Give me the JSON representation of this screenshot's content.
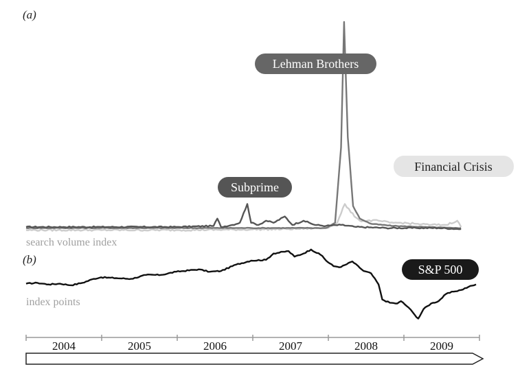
{
  "panels": {
    "a_label": "(a)",
    "b_label": "(b)"
  },
  "chart_data": [
    {
      "type": "line",
      "panel": "(a)",
      "ylabel": "search volume index",
      "x_range": [
        2004.0,
        2010.0
      ],
      "y_range": [
        0,
        100
      ],
      "series": [
        {
          "name": "Subprime",
          "color": "#555555",
          "points": [
            [
              2004.0,
              2
            ],
            [
              2004.5,
              2
            ],
            [
              2005.0,
              2
            ],
            [
              2005.5,
              2
            ],
            [
              2006.0,
              2
            ],
            [
              2006.5,
              2.5
            ],
            [
              2006.55,
              6
            ],
            [
              2006.6,
              2
            ],
            [
              2006.75,
              3
            ],
            [
              2006.85,
              4
            ],
            [
              2006.95,
              13
            ],
            [
              2007.0,
              4
            ],
            [
              2007.1,
              3
            ],
            [
              2007.2,
              5
            ],
            [
              2007.3,
              4
            ],
            [
              2007.45,
              7
            ],
            [
              2007.55,
              3
            ],
            [
              2007.7,
              5
            ],
            [
              2007.85,
              3
            ],
            [
              2008.0,
              2.5
            ],
            [
              2008.2,
              3
            ],
            [
              2008.4,
              2
            ],
            [
              2008.8,
              1.5
            ],
            [
              2009.2,
              1.5
            ],
            [
              2009.5,
              1.5
            ],
            [
              2009.8,
              1
            ]
          ]
        },
        {
          "name": "Lehman Brothers",
          "color": "#777777",
          "points": [
            [
              2004.0,
              1.5
            ],
            [
              2005.0,
              1.5
            ],
            [
              2006.0,
              1.5
            ],
            [
              2006.8,
              1.5
            ],
            [
              2007.0,
              1.5
            ],
            [
              2007.3,
              1.5
            ],
            [
              2007.6,
              1.5
            ],
            [
              2007.9,
              1.5
            ],
            [
              2008.0,
              1.5
            ],
            [
              2008.12,
              4
            ],
            [
              2008.2,
              40
            ],
            [
              2008.24,
              100
            ],
            [
              2008.29,
              45
            ],
            [
              2008.36,
              12
            ],
            [
              2008.45,
              6
            ],
            [
              2008.6,
              3.5
            ],
            [
              2008.9,
              2.5
            ],
            [
              2009.3,
              2
            ],
            [
              2009.7,
              1.5
            ],
            [
              2009.8,
              1.5
            ]
          ]
        },
        {
          "name": "Financial Crisis",
          "color": "#cccccc",
          "points": [
            [
              2004.0,
              0.5
            ],
            [
              2005.0,
              0.5
            ],
            [
              2006.0,
              0.5
            ],
            [
              2007.0,
              0.8
            ],
            [
              2007.5,
              1
            ],
            [
              2008.0,
              1.5
            ],
            [
              2008.15,
              4
            ],
            [
              2008.25,
              13
            ],
            [
              2008.33,
              9
            ],
            [
              2008.45,
              5
            ],
            [
              2008.7,
              5
            ],
            [
              2008.85,
              4
            ],
            [
              2009.0,
              4
            ],
            [
              2009.2,
              3.5
            ],
            [
              2009.4,
              3
            ],
            [
              2009.6,
              3
            ],
            [
              2009.75,
              5
            ],
            [
              2009.8,
              2
            ]
          ]
        }
      ],
      "annotations": [
        {
          "text": "Lehman Brothers",
          "style": "dark-grey",
          "x": 2008.0,
          "y": 72
        },
        {
          "text": "Subprime",
          "style": "dark-grey",
          "x": 2006.5,
          "y": 19
        },
        {
          "text": "Financial Crisis",
          "style": "light-grey",
          "x": 2009.0,
          "y": 26
        }
      ]
    },
    {
      "type": "line",
      "panel": "(b)",
      "ylabel": "index points",
      "x_range": [
        2004.0,
        2010.0
      ],
      "y_range": [
        650,
        1600
      ],
      "series": [
        {
          "name": "S&P 500",
          "color": "#111111",
          "points": [
            [
              2004.0,
              1120
            ],
            [
              2004.15,
              1130
            ],
            [
              2004.3,
              1110
            ],
            [
              2004.45,
              1120
            ],
            [
              2004.6,
              1100
            ],
            [
              2004.75,
              1130
            ],
            [
              2004.9,
              1180
            ],
            [
              2005.0,
              1200
            ],
            [
              2005.2,
              1190
            ],
            [
              2005.4,
              1180
            ],
            [
              2005.6,
              1230
            ],
            [
              2005.8,
              1230
            ],
            [
              2006.0,
              1270
            ],
            [
              2006.3,
              1300
            ],
            [
              2006.45,
              1270
            ],
            [
              2006.6,
              1280
            ],
            [
              2006.8,
              1360
            ],
            [
              2007.0,
              1410
            ],
            [
              2007.2,
              1420
            ],
            [
              2007.3,
              1500
            ],
            [
              2007.5,
              1530
            ],
            [
              2007.58,
              1460
            ],
            [
              2007.7,
              1500
            ],
            [
              2007.8,
              1550
            ],
            [
              2007.95,
              1470
            ],
            [
              2008.0,
              1410
            ],
            [
              2008.1,
              1340
            ],
            [
              2008.2,
              1330
            ],
            [
              2008.35,
              1400
            ],
            [
              2008.5,
              1280
            ],
            [
              2008.6,
              1250
            ],
            [
              2008.7,
              1110
            ],
            [
              2008.75,
              920
            ],
            [
              2008.85,
              880
            ],
            [
              2008.95,
              870
            ],
            [
              2009.0,
              900
            ],
            [
              2009.1,
              820
            ],
            [
              2009.18,
              730
            ],
            [
              2009.23,
              680
            ],
            [
              2009.3,
              800
            ],
            [
              2009.4,
              870
            ],
            [
              2009.5,
              900
            ],
            [
              2009.6,
              990
            ],
            [
              2009.7,
              1020
            ],
            [
              2009.8,
              1040
            ],
            [
              2009.9,
              1080
            ],
            [
              2010.0,
              1110
            ]
          ]
        }
      ],
      "annotations": [
        {
          "text": "S&P 500",
          "style": "black",
          "x": 2009.2,
          "y": 1230
        }
      ]
    }
  ],
  "timeline": {
    "years": [
      "2004",
      "2005",
      "2006",
      "2007",
      "2008",
      "2009"
    ],
    "x_range": [
      2004.0,
      2010.0
    ]
  }
}
